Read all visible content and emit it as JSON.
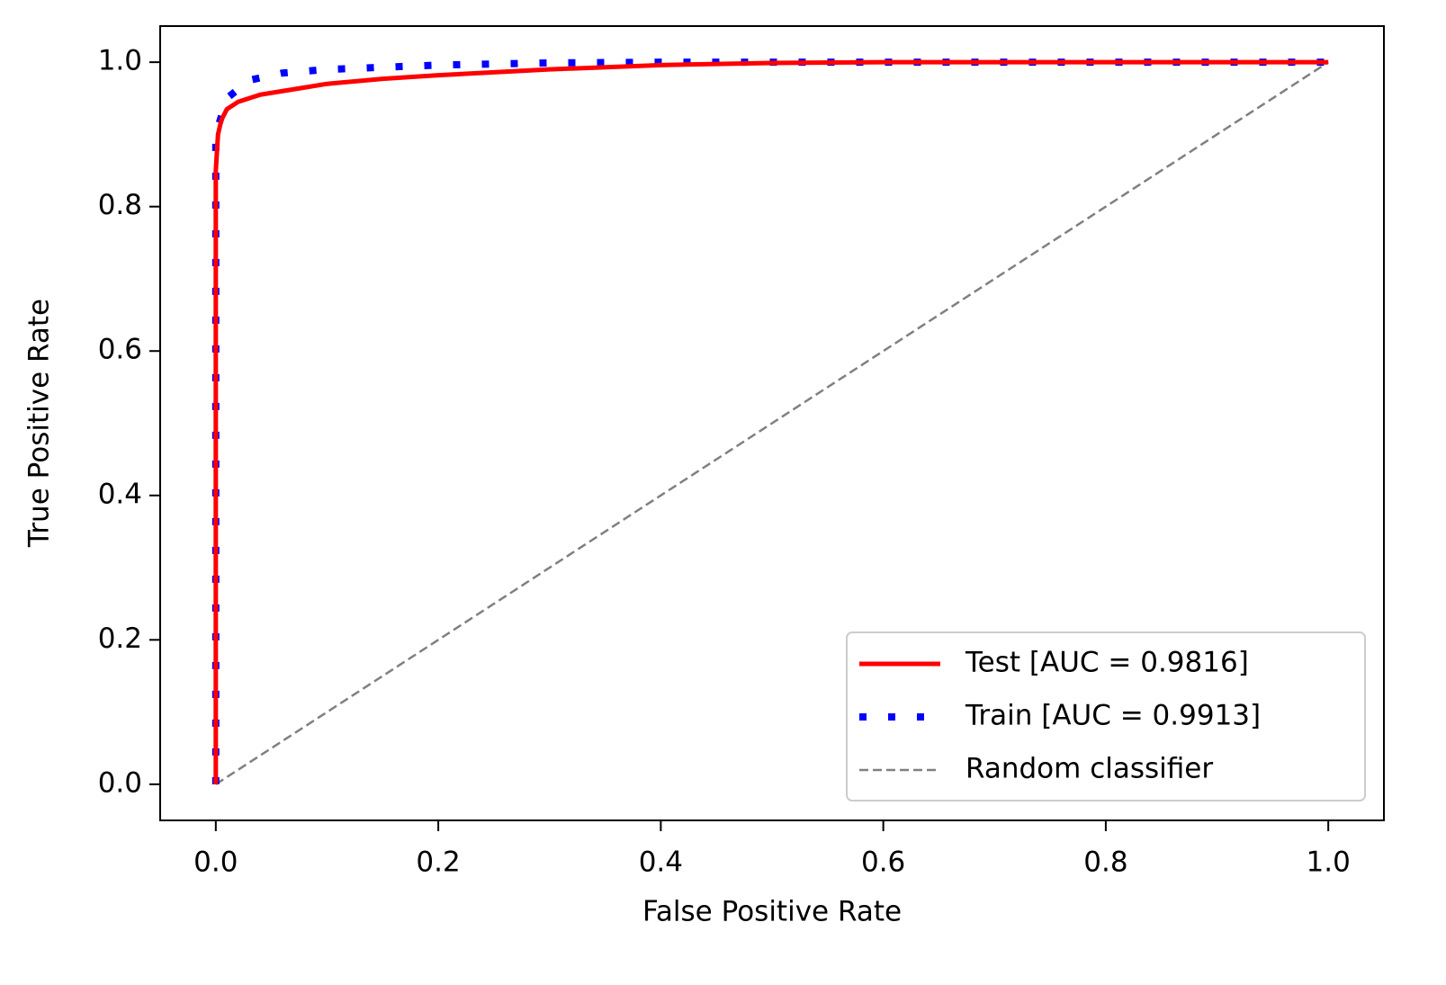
{
  "chart_data": {
    "type": "line",
    "xlabel": "False Positive Rate",
    "ylabel": "True Positive Rate",
    "xlim": [
      -0.05,
      1.05
    ],
    "ylim": [
      -0.05,
      1.05
    ],
    "xticks": [
      {
        "value": 0,
        "label": "0.0"
      },
      0.2,
      0.4,
      0.6,
      0.8,
      {
        "value": 1,
        "label": "1.0"
      }
    ],
    "yticks": [
      {
        "value": 0,
        "label": "0.0"
      },
      0.2,
      0.4,
      0.6,
      0.8,
      {
        "value": 1,
        "label": "1.0"
      }
    ],
    "grid": false,
    "legend_position": "lower right",
    "series": [
      {
        "name": "Test [AUC = 0.9816]",
        "color": "#ff0000",
        "line_style": "solid",
        "x": [
          0,
          0,
          0.002,
          0.005,
          0.01,
          0.02,
          0.04,
          0.06,
          0.08,
          0.1,
          0.15,
          0.2,
          0.3,
          0.4,
          0.5,
          0.6,
          1.0
        ],
        "values": [
          0,
          0.85,
          0.9,
          0.92,
          0.935,
          0.945,
          0.955,
          0.96,
          0.965,
          0.97,
          0.977,
          0.982,
          0.99,
          0.996,
          0.999,
          1.0,
          1.0
        ]
      },
      {
        "name": "Train [AUC = 0.9913]",
        "color": "#0000ff",
        "line_style": "dotted",
        "x": [
          0,
          0,
          0.01,
          0.03,
          0.06,
          0.1,
          0.2,
          0.3,
          0.4,
          1.0
        ],
        "values": [
          0,
          0.9,
          0.95,
          0.975,
          0.985,
          0.99,
          0.996,
          0.999,
          1.0,
          1.0
        ]
      },
      {
        "name": "Random classifier",
        "color": "#808080",
        "line_style": "dashed",
        "x": [
          0,
          1
        ],
        "values": [
          0,
          1
        ]
      }
    ]
  }
}
